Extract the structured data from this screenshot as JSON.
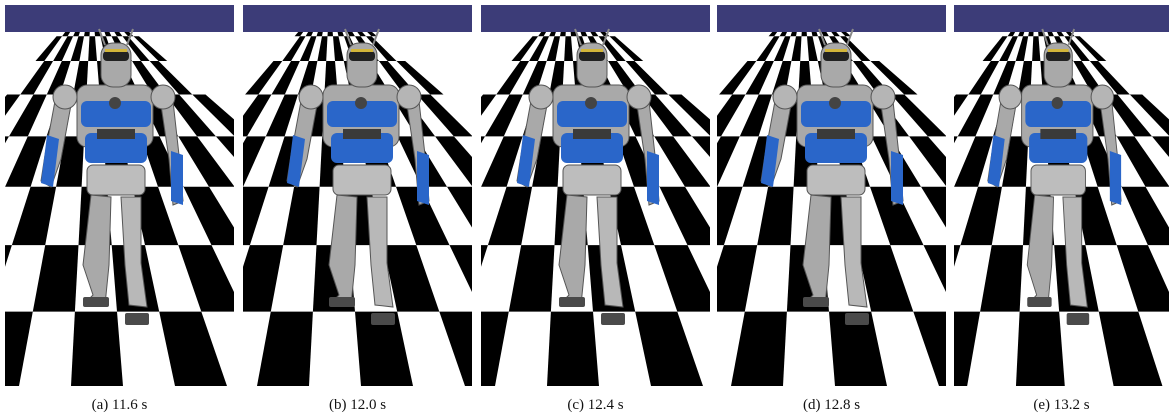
{
  "figure": {
    "panels": [
      {
        "caption": "(a) 11.6 s"
      },
      {
        "caption": "(b) 12.0 s"
      },
      {
        "caption": "(c) 12.4 s"
      },
      {
        "caption": "(d) 12.8 s"
      },
      {
        "caption": "(e) 13.2 s"
      }
    ]
  },
  "colors": {
    "sky": "#3c3c78",
    "floor_dark": "#000000",
    "floor_light": "#ffffff",
    "robot_grey": "#a9a9a9",
    "robot_blue": "#2a66c9",
    "visor_gold": "#d2b53a"
  }
}
